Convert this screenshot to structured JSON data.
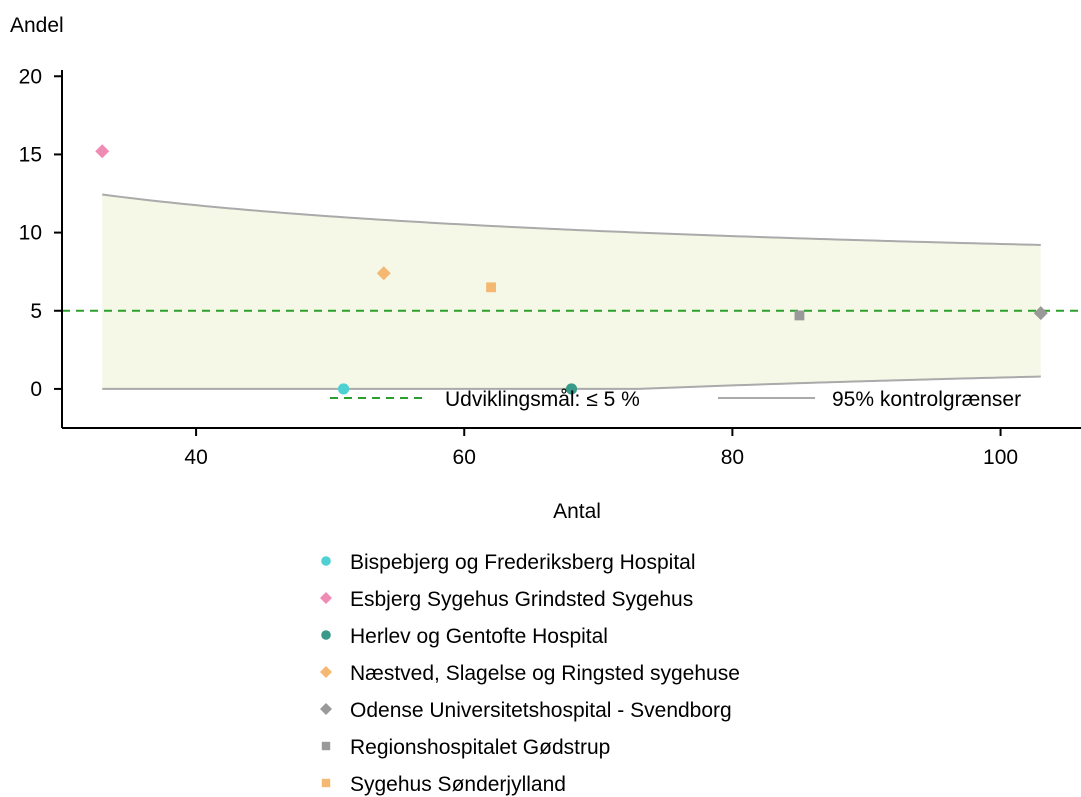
{
  "chart_data": {
    "type": "scatter",
    "ylabel": "Andel",
    "xlabel": "Antal",
    "xlim": [
      30,
      106
    ],
    "ylim": [
      -2.5,
      22
    ],
    "xticks": [
      40,
      60,
      80,
      100
    ],
    "yticks": [
      0,
      5,
      10,
      15,
      20
    ],
    "target": {
      "label": "Udviklingsmål: ≤ 5 %",
      "value": 5,
      "color": "#2ca02c"
    },
    "control_limits": {
      "label": "95% kontrolgrænser",
      "color": "#aaaaaa",
      "fill": "#f5f8e6",
      "n_range": [
        33,
        103
      ],
      "p": 0.05
    },
    "series": [
      {
        "name": "Bispebjerg og Frederiksberg Hospital",
        "marker": "circle",
        "color": "#4fd0d3",
        "x": 51,
        "y": 0
      },
      {
        "name": "Esbjerg Sygehus Grindsted Sygehus",
        "marker": "diamond",
        "color": "#f08bb4",
        "x": 33,
        "y": 15.2
      },
      {
        "name": "Herlev og Gentofte Hospital",
        "marker": "circle",
        "color": "#3a9a8a",
        "x": 68,
        "y": 0
      },
      {
        "name": "Næstved, Slagelse og Ringsted sygehuse",
        "marker": "diamond",
        "color": "#f5b872",
        "x": 54,
        "y": 7.4
      },
      {
        "name": "Odense Universitetshospital - Svendborg",
        "marker": "diamond",
        "color": "#999999",
        "x": 103,
        "y": 4.85
      },
      {
        "name": "Regionshospitalet Gødstrup",
        "marker": "square",
        "color": "#999999",
        "x": 85,
        "y": 4.7
      },
      {
        "name": "Sygehus Sønderjylland",
        "marker": "square",
        "color": "#f5b872",
        "x": 62,
        "y": 6.5
      }
    ]
  }
}
